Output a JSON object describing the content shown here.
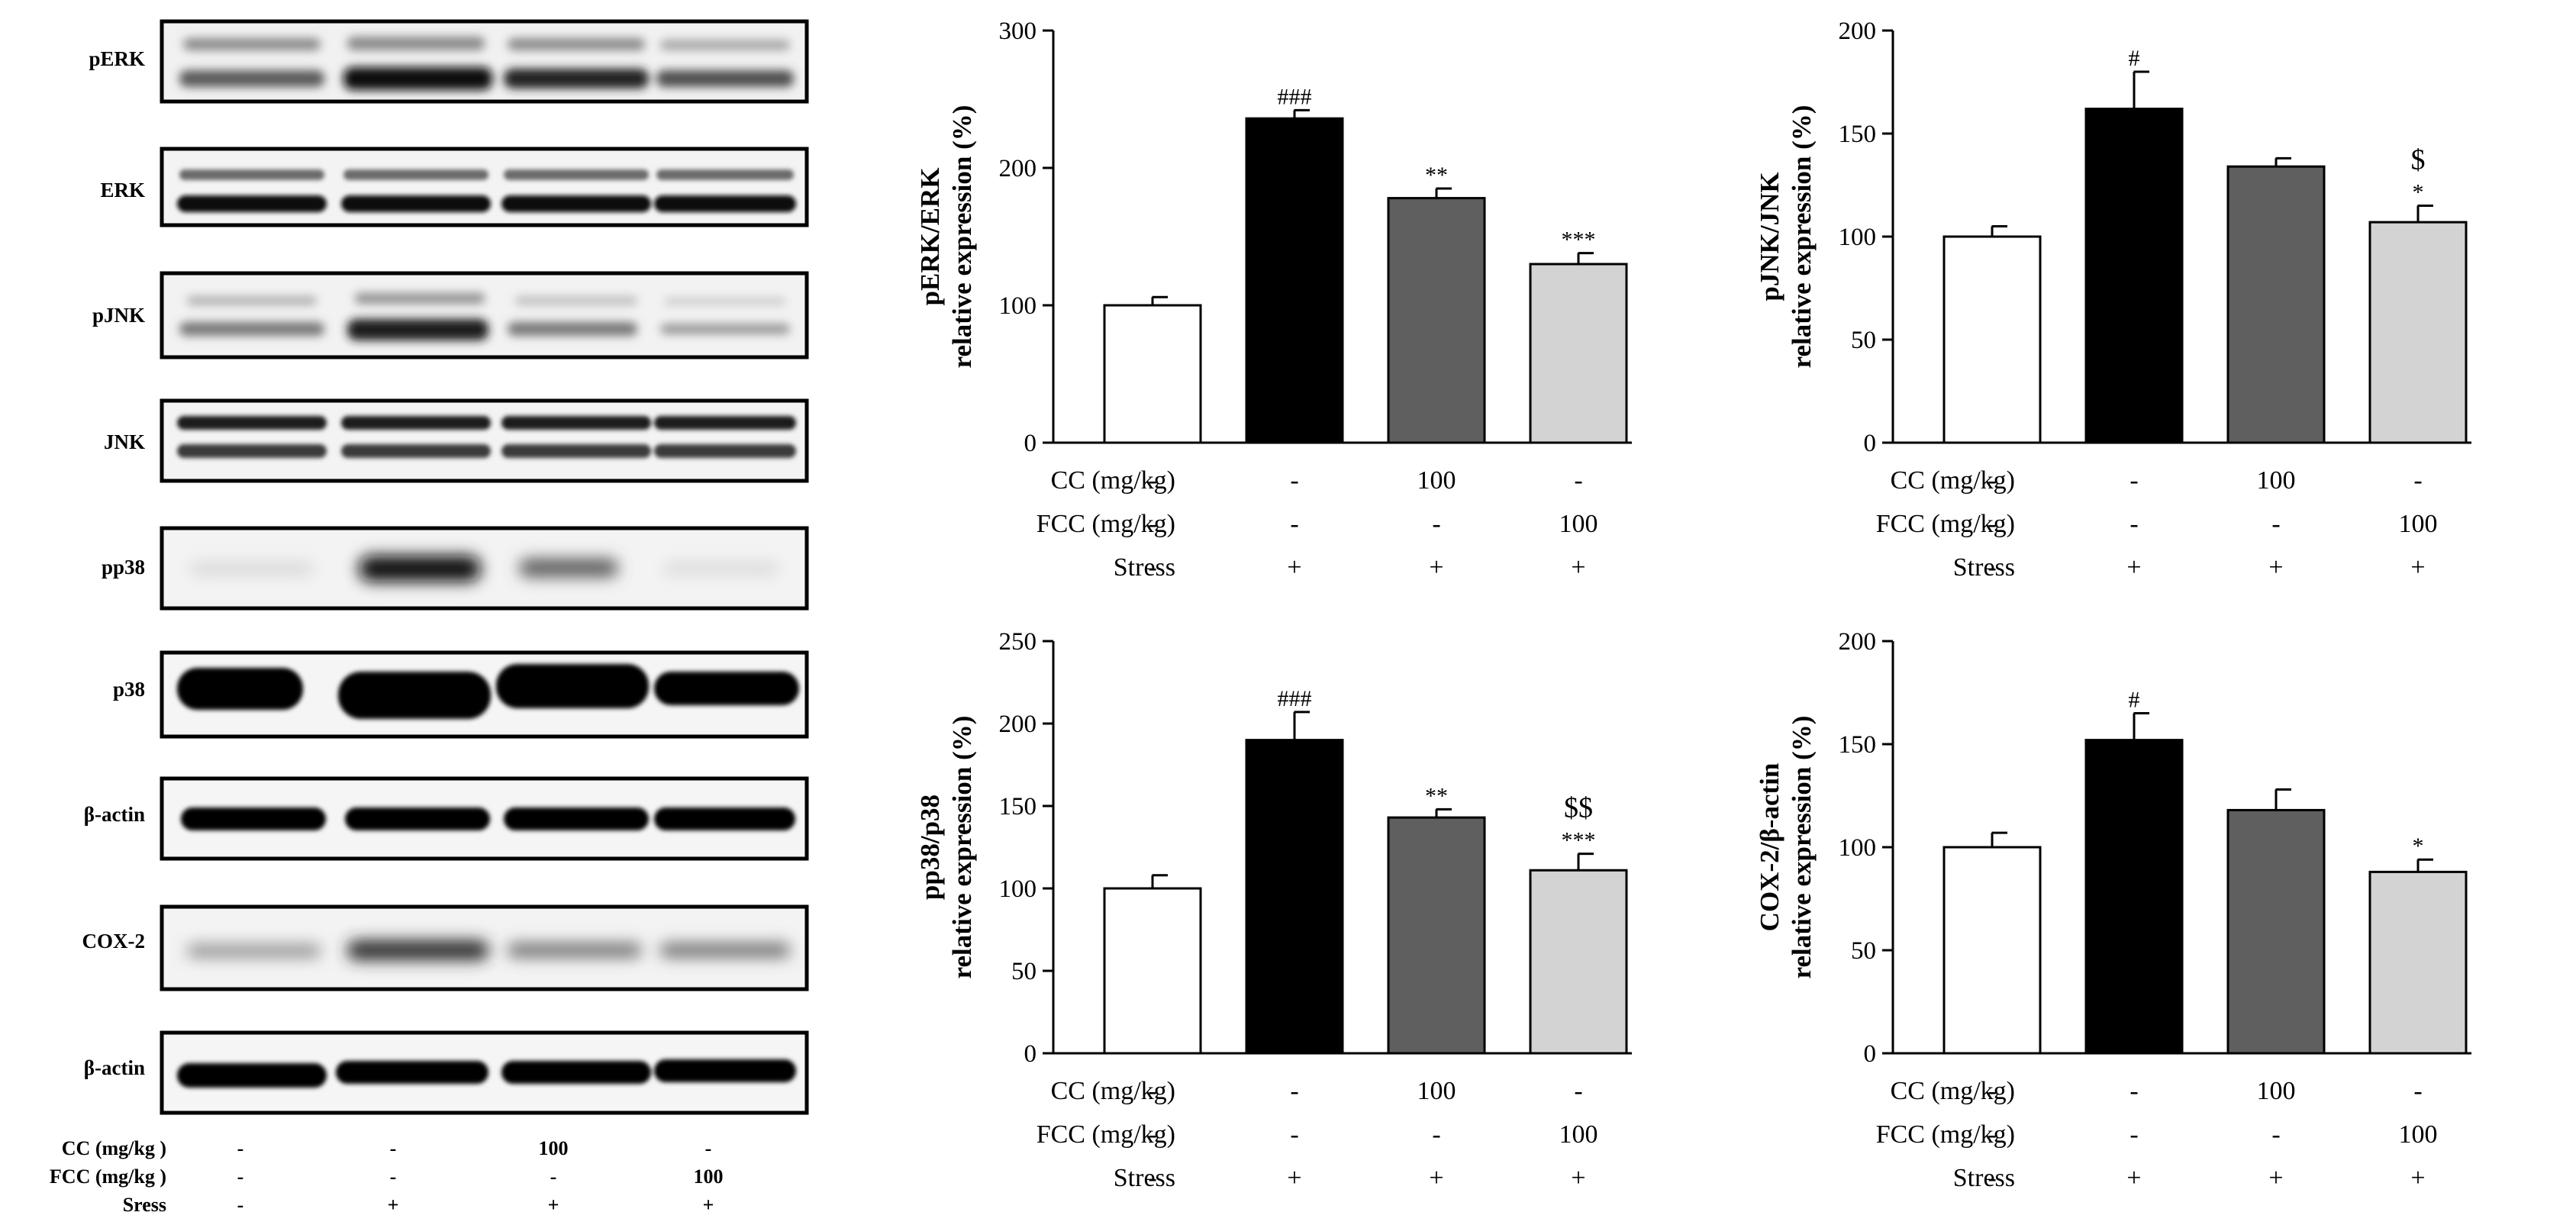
{
  "blots": {
    "rows": [
      {
        "label": "pERK"
      },
      {
        "label": "ERK"
      },
      {
        "label": "pJNK"
      },
      {
        "label": "JNK"
      },
      {
        "label": "pp38"
      },
      {
        "label": "p38"
      },
      {
        "label": "β-actin"
      },
      {
        "label": "COX-2"
      },
      {
        "label": "β-actin"
      }
    ],
    "conditions": [
      {
        "label": "CC (mg/kg )",
        "values": [
          "-",
          "-",
          "100",
          "-"
        ]
      },
      {
        "label": "FCC (mg/kg )",
        "values": [
          "-",
          "-",
          "-",
          "100"
        ]
      },
      {
        "label": "Sress",
        "values": [
          "-",
          "+",
          "+",
          "+"
        ]
      }
    ]
  },
  "conditions": [
    {
      "label": "CC (mg/kg)",
      "values": [
        "-",
        "-",
        "100",
        "-"
      ]
    },
    {
      "label": "FCC (mg/kg)",
      "values": [
        "-",
        "-",
        "-",
        "100"
      ]
    },
    {
      "label": "Stress",
      "values": [
        "-",
        "+",
        "+",
        "+"
      ]
    }
  ],
  "colors": {
    "bars": [
      "#ffffff",
      "#000000",
      "#5f5f5f",
      "#d3d3d3"
    ]
  },
  "chart_data": [
    {
      "type": "bar",
      "ylabel_line1": "pERK/ERK",
      "ylabel_line2": "relative expression (%)",
      "ylim": [
        0,
        300
      ],
      "yticks": [
        0,
        100,
        200,
        300
      ],
      "values": [
        100,
        236,
        178,
        130
      ],
      "errors": [
        6,
        6,
        7,
        8
      ],
      "annotations": [
        [
          "",
          ""
        ],
        [
          "###",
          ""
        ],
        [
          "**",
          ""
        ],
        [
          "***",
          ""
        ]
      ]
    },
    {
      "type": "bar",
      "ylabel_line1": "pJNK/JNK",
      "ylabel_line2": "relative expression (%)",
      "ylim": [
        0,
        200
      ],
      "yticks": [
        0,
        50,
        100,
        150,
        200
      ],
      "values": [
        100,
        162,
        134,
        107
      ],
      "errors": [
        5,
        18,
        4,
        8
      ],
      "annotations": [
        [
          "",
          ""
        ],
        [
          "#",
          ""
        ],
        [
          "",
          ""
        ],
        [
          "*",
          "$"
        ]
      ]
    },
    {
      "type": "bar",
      "ylabel_line1": "pp38/p38",
      "ylabel_line2": "relative expression (%)",
      "ylim": [
        0,
        250
      ],
      "yticks": [
        0,
        50,
        100,
        150,
        200,
        250
      ],
      "values": [
        100,
        190,
        143,
        111
      ],
      "errors": [
        8,
        17,
        5,
        10
      ],
      "annotations": [
        [
          "",
          ""
        ],
        [
          "###",
          ""
        ],
        [
          "**",
          ""
        ],
        [
          "***",
          "$$"
        ]
      ]
    },
    {
      "type": "bar",
      "ylabel_line1": "COX-2/β-actin",
      "ylabel_line2": "relative expression (%)",
      "ylim": [
        0,
        200
      ],
      "yticks": [
        0,
        50,
        100,
        150,
        200
      ],
      "values": [
        100,
        152,
        118,
        88
      ],
      "errors": [
        7,
        13,
        10,
        6
      ],
      "annotations": [
        [
          "",
          ""
        ],
        [
          "#",
          ""
        ],
        [
          "",
          ""
        ],
        [
          "*",
          ""
        ]
      ]
    }
  ]
}
